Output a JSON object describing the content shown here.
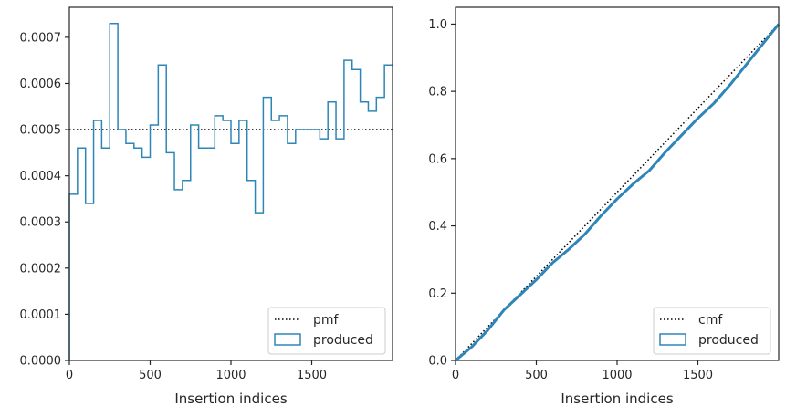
{
  "chart_data": [
    {
      "type": "step",
      "xlabel": "Insertion indices",
      "ylabel": "",
      "xlim": [
        0,
        2000
      ],
      "ylim": [
        0,
        0.000765
      ],
      "xticks": [
        0,
        500,
        1000,
        1500
      ],
      "xtick_labels": [
        "0",
        "500",
        "1000",
        "1500"
      ],
      "yticks": [
        0,
        0.0001,
        0.0002,
        0.0003,
        0.0004,
        0.0005,
        0.0006,
        0.0007
      ],
      "ytick_labels": [
        "0.0000",
        "0.0001",
        "0.0002",
        "0.0003",
        "0.0004",
        "0.0005",
        "0.0006",
        "0.0007"
      ],
      "reference": {
        "name": "pmf",
        "style": "dotted",
        "color": "#000000",
        "value": 0.0005
      },
      "series": [
        {
          "name": "produced",
          "color": "#2e86b8",
          "bin_width": 50,
          "bin_edges_start": 0,
          "values": [
            0.00036,
            0.00046,
            0.00034,
            0.00052,
            0.00046,
            0.00073,
            0.0005,
            0.00047,
            0.00046,
            0.00044,
            0.00051,
            0.00064,
            0.00045,
            0.00037,
            0.00039,
            0.00051,
            0.00046,
            0.00046,
            0.00053,
            0.00052,
            0.00047,
            0.00052,
            0.00039,
            0.00032,
            0.00057,
            0.00052,
            0.00053,
            0.00047,
            0.0005,
            0.0005,
            0.0005,
            0.00048,
            0.00056,
            0.00048,
            0.00065,
            0.00063,
            0.00056,
            0.00054,
            0.00057,
            0.00064
          ]
        }
      ],
      "legend": {
        "location": "lower-right",
        "entries": [
          "pmf",
          "produced"
        ]
      }
    },
    {
      "type": "line",
      "xlabel": "Insertion indices",
      "ylabel": "",
      "xlim": [
        0,
        2000
      ],
      "ylim": [
        0,
        1.05
      ],
      "xticks": [
        0,
        500,
        1000,
        1500
      ],
      "xtick_labels": [
        "0",
        "500",
        "1000",
        "1500"
      ],
      "yticks": [
        0,
        0.2,
        0.4,
        0.6,
        0.8,
        1.0
      ],
      "ytick_labels": [
        "0.0",
        "0.2",
        "0.4",
        "0.6",
        "0.8",
        "1.0"
      ],
      "reference": {
        "name": "cmf",
        "style": "dotted",
        "color": "#000000",
        "x": [
          0,
          2000
        ],
        "y": [
          0,
          1.0
        ]
      },
      "series": [
        {
          "name": "produced",
          "color": "#2e86b8",
          "x": [
            0,
            100,
            200,
            300,
            400,
            500,
            600,
            700,
            800,
            900,
            1000,
            1100,
            1200,
            1300,
            1400,
            1500,
            1600,
            1700,
            1800,
            1900,
            2000
          ],
          "y": [
            0.0,
            0.04,
            0.09,
            0.15,
            0.195,
            0.24,
            0.29,
            0.33,
            0.375,
            0.43,
            0.48,
            0.525,
            0.565,
            0.62,
            0.67,
            0.72,
            0.765,
            0.82,
            0.88,
            0.94,
            1.0
          ]
        }
      ],
      "legend": {
        "location": "lower-right",
        "entries": [
          "cmf",
          "produced"
        ]
      }
    }
  ]
}
